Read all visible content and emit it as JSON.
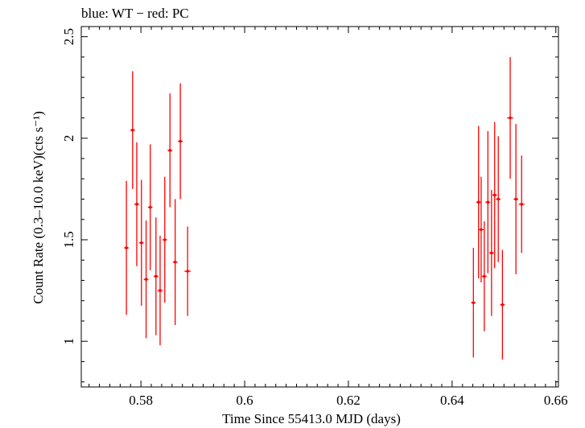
{
  "chart_data": {
    "type": "scatter",
    "title": "blue: WT − red: PC",
    "xlabel": "Time Since 55413.0 MJD (days)",
    "ylabel": "Count Rate (0.3–10.0 keV)(cts s⁻¹)",
    "xlim": [
      0.5685,
      0.6605
    ],
    "ylim": [
      0.775,
      2.55
    ],
    "x_ticks": [
      0.58,
      0.6,
      0.62,
      0.64,
      0.66
    ],
    "x_tick_labels": [
      "0.58",
      "0.6",
      "0.62",
      "0.64",
      "0.66"
    ],
    "y_ticks": [
      1,
      1.5,
      2,
      2.5
    ],
    "y_tick_labels": [
      "1",
      "1.5",
      "2",
      "2.5"
    ],
    "grid": false,
    "series": [
      {
        "color": "#ff0000",
        "points": [
          {
            "x": 0.5772,
            "y": 1.46,
            "yerr": 0.33,
            "xerr": 0.00045
          },
          {
            "x": 0.5784,
            "y": 2.04,
            "yerr": 0.29,
            "xerr": 0.00045
          },
          {
            "x": 0.5792,
            "y": 1.675,
            "yerr": 0.305,
            "xerr": 0.00045
          },
          {
            "x": 0.5801,
            "y": 1.485,
            "yerr": 0.31,
            "xerr": 0.00045
          },
          {
            "x": 0.581,
            "y": 1.305,
            "yerr": 0.29,
            "xerr": 0.00045
          },
          {
            "x": 0.5818,
            "y": 1.66,
            "yerr": 0.31,
            "xerr": 0.00045
          },
          {
            "x": 0.5829,
            "y": 1.32,
            "yerr": 0.29,
            "xerr": 0.00045
          },
          {
            "x": 0.5837,
            "y": 1.25,
            "yerr": 0.27,
            "xerr": 0.00045
          },
          {
            "x": 0.5846,
            "y": 1.5,
            "yerr": 0.31,
            "xerr": 0.00045
          },
          {
            "x": 0.5856,
            "y": 1.94,
            "yerr": 0.28,
            "xerr": 0.00045
          },
          {
            "x": 0.5866,
            "y": 1.39,
            "yerr": 0.31,
            "xerr": 0.00045
          },
          {
            "x": 0.5876,
            "y": 1.985,
            "yerr": 0.285,
            "xerr": 0.00045
          },
          {
            "x": 0.589,
            "y": 1.345,
            "yerr": 0.22,
            "xerr": 0.0006
          },
          {
            "x": 0.6441,
            "y": 1.19,
            "yerr": 0.27,
            "xerr": 0.00045
          },
          {
            "x": 0.6451,
            "y": 1.685,
            "yerr": 0.375,
            "xerr": 0.00045
          },
          {
            "x": 0.6456,
            "y": 1.55,
            "yerr": 0.26,
            "xerr": 0.00045
          },
          {
            "x": 0.6462,
            "y": 1.32,
            "yerr": 0.27,
            "xerr": 0.00045
          },
          {
            "x": 0.6469,
            "y": 1.685,
            "yerr": 0.35,
            "xerr": 0.00045
          },
          {
            "x": 0.6476,
            "y": 1.435,
            "yerr": 0.31,
            "xerr": 0.00045
          },
          {
            "x": 0.6482,
            "y": 1.72,
            "yerr": 0.36,
            "xerr": 0.00045
          },
          {
            "x": 0.6489,
            "y": 1.7,
            "yerr": 0.31,
            "xerr": 0.00045
          },
          {
            "x": 0.6497,
            "y": 1.18,
            "yerr": 0.27,
            "xerr": 0.00045
          },
          {
            "x": 0.6512,
            "y": 2.1,
            "yerr": 0.3,
            "xerr": 0.0006
          },
          {
            "x": 0.6523,
            "y": 1.7,
            "yerr": 0.37,
            "xerr": 0.00045
          },
          {
            "x": 0.6534,
            "y": 1.675,
            "yerr": 0.24,
            "xerr": 0.00055
          }
        ]
      }
    ]
  }
}
